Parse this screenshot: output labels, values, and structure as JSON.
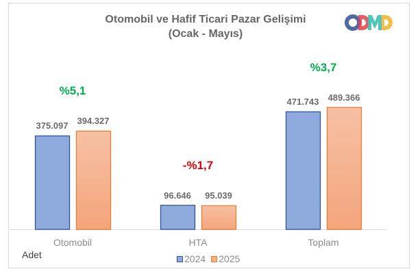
{
  "chart_data": {
    "type": "bar",
    "title": "Otomobil ve Hafif Ticari Pazar Gelişimi",
    "subtitle": "(Ocak - Mayıs)",
    "categories": [
      "Otomobil",
      "HTA",
      "Toplam"
    ],
    "series": [
      {
        "name": "2024",
        "values": [
          375097,
          96646,
          471743
        ],
        "labels": [
          "375.097",
          "96.646",
          "471.743"
        ],
        "color": "#8faadc",
        "border": "#2f5597"
      },
      {
        "name": "2025",
        "values": [
          394327,
          95039,
          489366
        ],
        "labels": [
          "394.327",
          "95.039",
          "489.366"
        ],
        "color": "#f4b183",
        "border": "#ed7d31"
      }
    ],
    "changes": [
      {
        "text": "%5,1",
        "color": "#00b050"
      },
      {
        "text": "-%1,7",
        "color": "#e00000"
      },
      {
        "text": "%3,7",
        "color": "#00b050"
      }
    ],
    "unit_label": "Adet",
    "ylim": [
      0,
      500000
    ],
    "grid": false,
    "legend_position": "bottom"
  },
  "logo": {
    "text": "ODMD",
    "colors": [
      "#3e5b94",
      "#e4404a",
      "#3cbfb4",
      "#f2b632"
    ]
  }
}
